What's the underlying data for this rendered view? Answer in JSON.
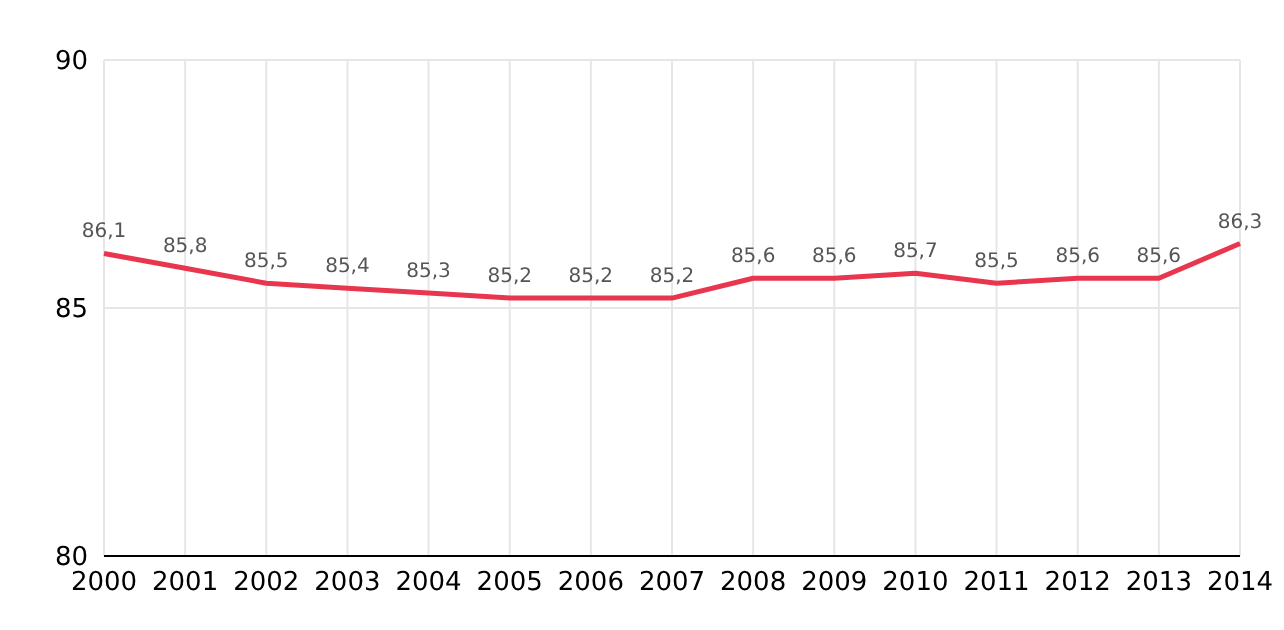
{
  "chart_data": {
    "type": "line",
    "categories": [
      "2000",
      "2001",
      "2002",
      "2003",
      "2004",
      "2005",
      "2006",
      "2007",
      "2008",
      "2009",
      "2010",
      "2011",
      "2012",
      "2013",
      "2014"
    ],
    "series": [
      {
        "color": "#e8364e",
        "values": [
          86.1,
          85.8,
          85.5,
          85.4,
          85.3,
          85.2,
          85.2,
          85.2,
          85.6,
          85.6,
          85.7,
          85.5,
          85.6,
          85.6,
          86.3
        ],
        "value_labels": [
          "86,1",
          "85,8",
          "85,5",
          "85,4",
          "85,3",
          "85,2",
          "85,2",
          "85,2",
          "85,6",
          "85,6",
          "85,7",
          "85,5",
          "85,6",
          "85,6",
          "86,3"
        ]
      }
    ],
    "ylim": [
      80,
      90
    ],
    "yticks": [
      80,
      85,
      90
    ],
    "grid": true,
    "marker": "none",
    "line_style": "solid",
    "legend": false
  }
}
